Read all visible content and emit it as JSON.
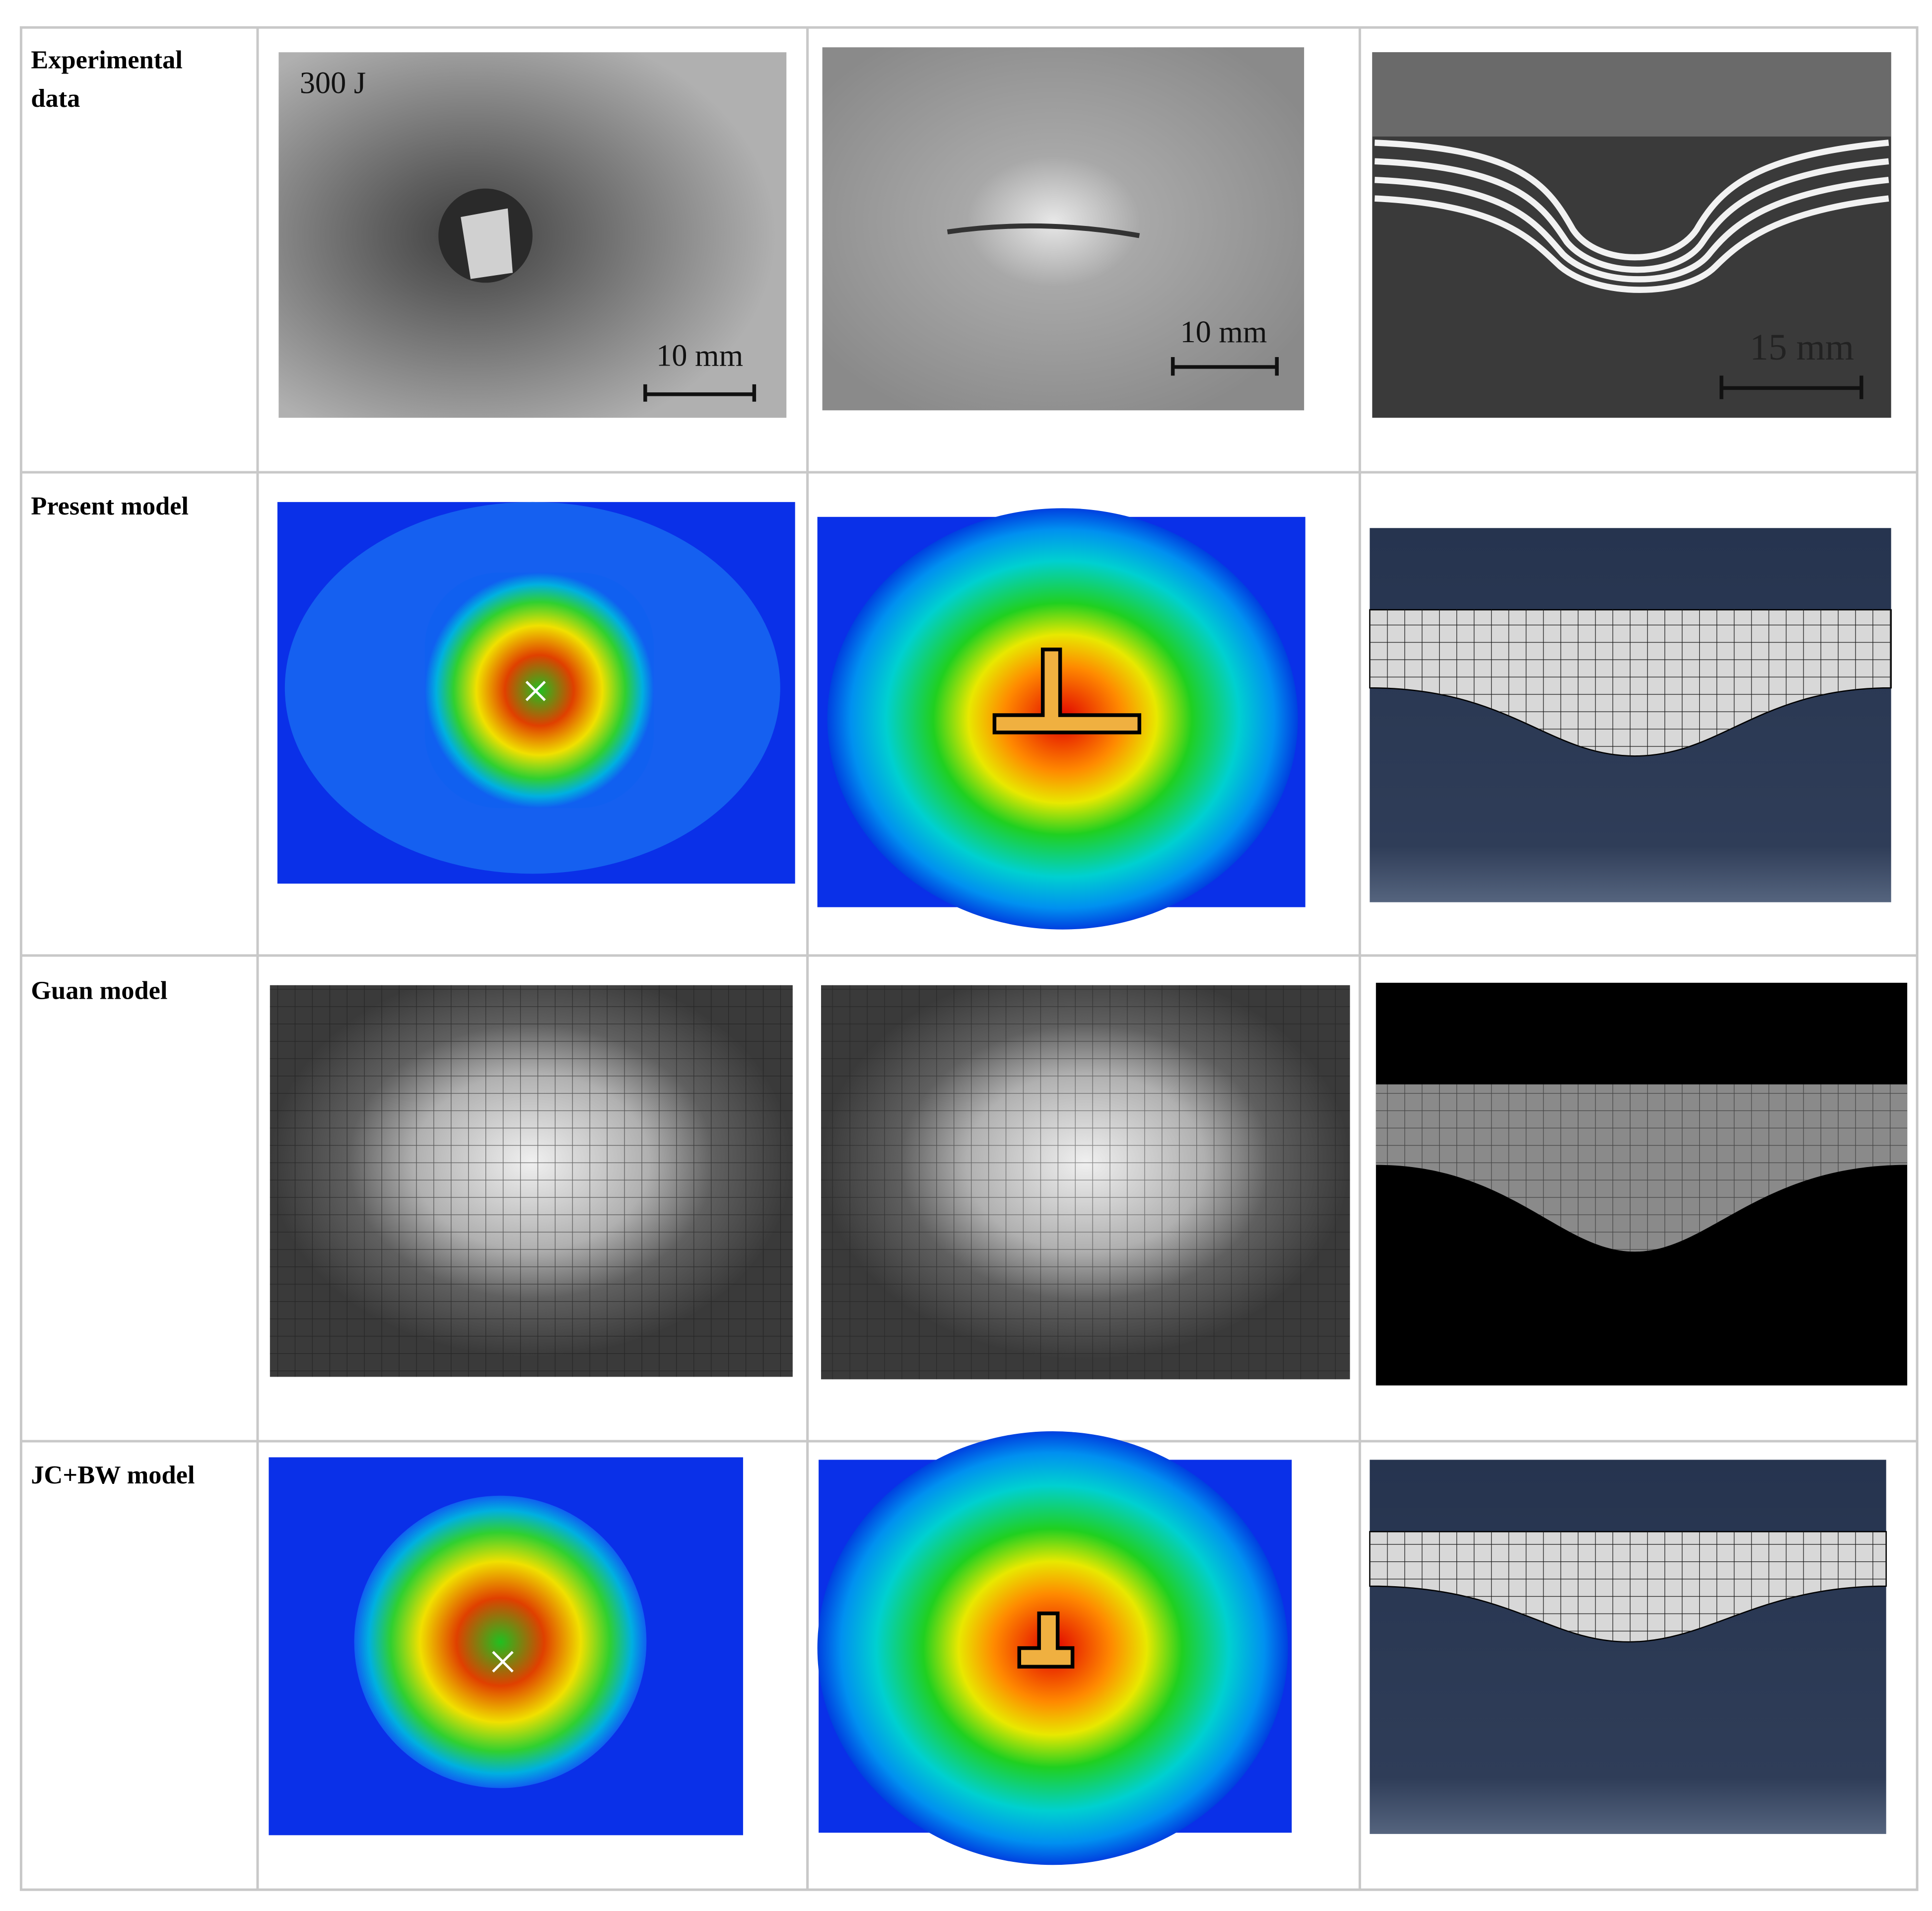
{
  "table": {
    "rows": [
      {
        "label": "Experimental data",
        "image_labels": [
          "300 J",
          "10 mm",
          "10 mm",
          "15 mm"
        ]
      },
      {
        "label": "Present model"
      },
      {
        "label": "Guan model"
      },
      {
        "label": "JC+BW model"
      }
    ]
  }
}
